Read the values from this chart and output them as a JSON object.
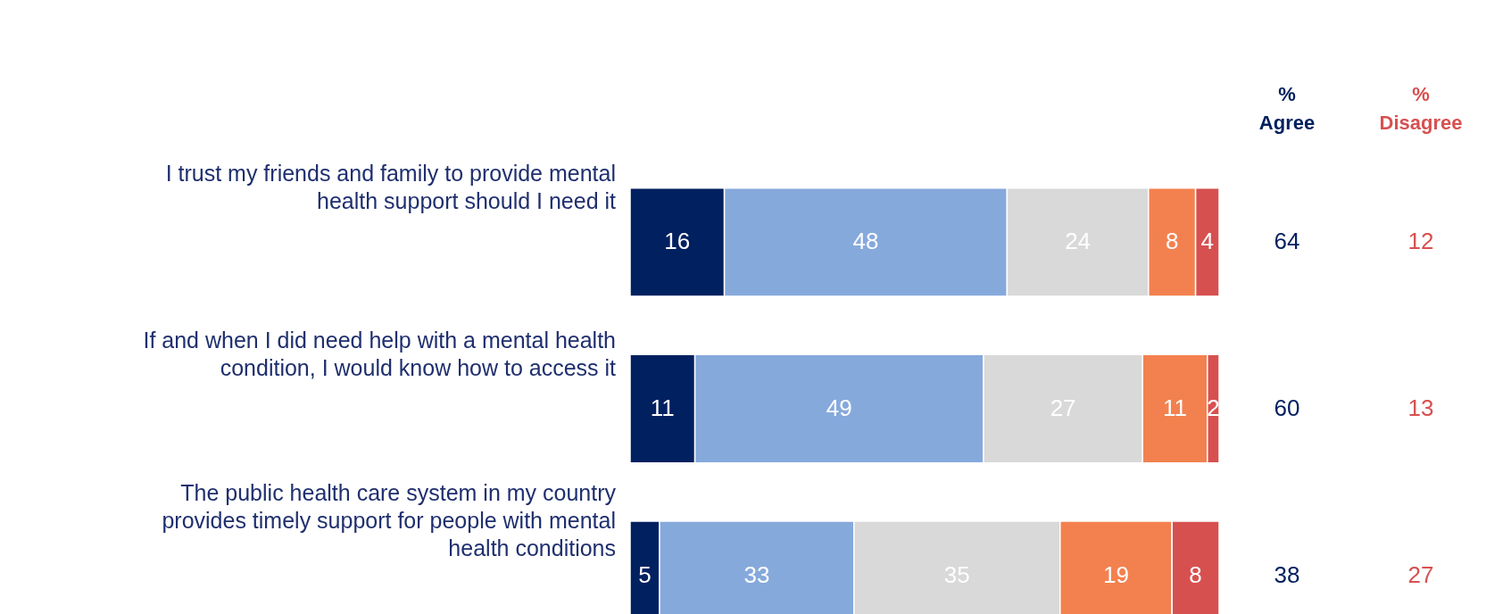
{
  "chart_data": {
    "type": "bar",
    "orientation": "horizontal",
    "stacked": true,
    "categories": [
      "I trust my friends and family to provide mental health support should I need it",
      "If and when I did need help with a mental health condition, I would know how to access it",
      "The public health care system in my country provides timely support for people with mental health conditions"
    ],
    "series": [
      {
        "color": "#002060",
        "values": [
          16,
          11,
          5
        ]
      },
      {
        "color": "#86a9dc",
        "values": [
          48,
          49,
          33
        ]
      },
      {
        "color": "#d9d9d9",
        "values": [
          24,
          27,
          35
        ]
      },
      {
        "color": "#f3814f",
        "values": [
          8,
          11,
          19
        ]
      },
      {
        "color": "#d75050",
        "values": [
          4,
          2,
          8
        ]
      }
    ],
    "xlim": [
      0,
      100
    ],
    "data_labels": true,
    "tick_labels": "y",
    "legend": false,
    "annotations": [
      "% Agree",
      "% Disagree",
      "64",
      "12",
      "60",
      "13",
      "38",
      "27"
    ]
  }
}
